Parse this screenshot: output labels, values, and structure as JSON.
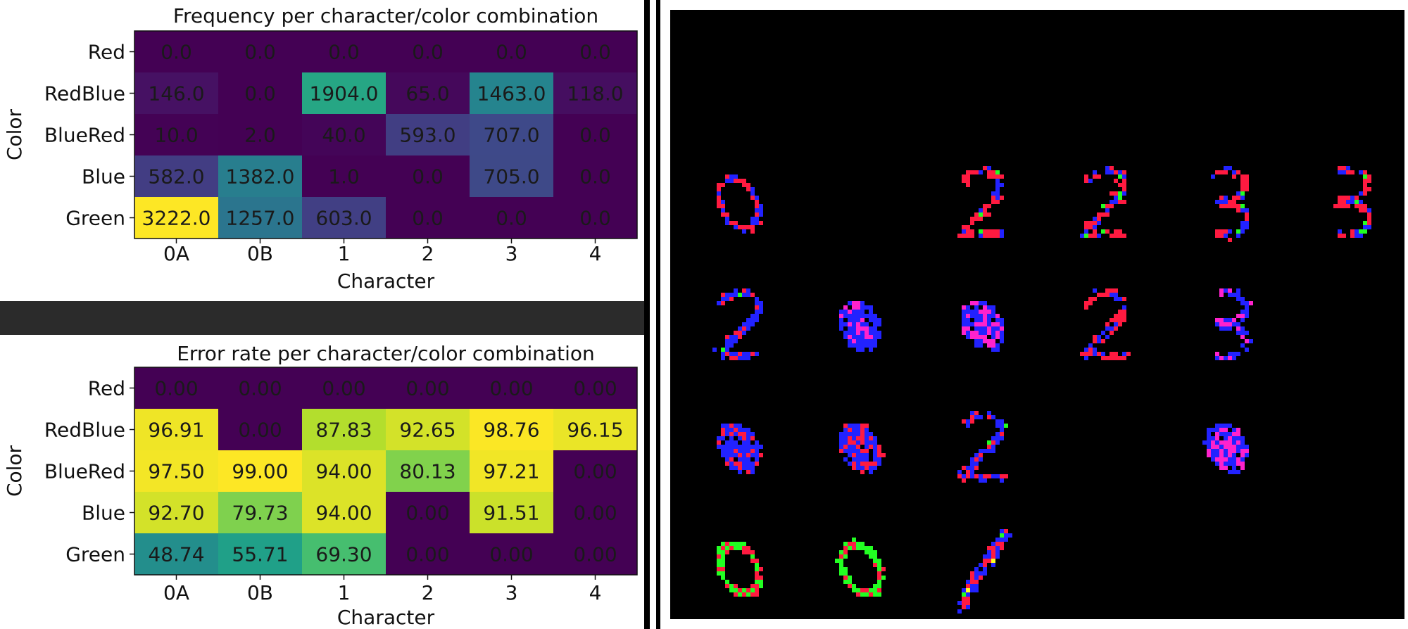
{
  "chart_data": [
    {
      "type": "heatmap",
      "title": "Frequency per character/color combination",
      "xlabel": "Character",
      "ylabel": "Color",
      "x_categories": [
        "0A",
        "0B",
        "1",
        "2",
        "3",
        "4"
      ],
      "y_categories": [
        "Red",
        "RedBlue",
        "BlueRed",
        "Blue",
        "Green"
      ],
      "values": [
        [
          0.0,
          0.0,
          0.0,
          0.0,
          0.0,
          0.0
        ],
        [
          146.0,
          0.0,
          1904.0,
          65.0,
          1463.0,
          118.0
        ],
        [
          10.0,
          2.0,
          40.0,
          593.0,
          707.0,
          0.0
        ],
        [
          582.0,
          1382.0,
          1.0,
          0.0,
          705.0,
          0.0
        ],
        [
          3222.0,
          1257.0,
          603.0,
          0.0,
          0.0,
          0.0
        ]
      ],
      "cell_labels": [
        [
          "0.0",
          "0.0",
          "0.0",
          "0.0",
          "0.0",
          "0.0"
        ],
        [
          "146.0",
          "0.0",
          "1904.0",
          "65.0",
          "1463.0",
          "118.0"
        ],
        [
          "10.0",
          "2.0",
          "40.0",
          "593.0",
          "707.0",
          "0.0"
        ],
        [
          "582.0",
          "1382.0",
          "1.0",
          "0.0",
          "705.0",
          "0.0"
        ],
        [
          "3222.0",
          "1257.0",
          "603.0",
          "0.0",
          "0.0",
          "0.0"
        ]
      ],
      "colormap": "viridis",
      "value_range": [
        0,
        3222.0
      ]
    },
    {
      "type": "heatmap",
      "title": "Error rate per character/color combination",
      "xlabel": "Character",
      "ylabel": "Color",
      "x_categories": [
        "0A",
        "0B",
        "1",
        "2",
        "3",
        "4"
      ],
      "y_categories": [
        "Red",
        "RedBlue",
        "BlueRed",
        "Blue",
        "Green"
      ],
      "values": [
        [
          0.0,
          0.0,
          0.0,
          0.0,
          0.0,
          0.0
        ],
        [
          96.91,
          0.0,
          87.83,
          92.65,
          98.76,
          96.15
        ],
        [
          97.5,
          99.0,
          94.0,
          80.13,
          97.21,
          0.0
        ],
        [
          92.7,
          79.73,
          94.0,
          0.0,
          91.51,
          0.0
        ],
        [
          48.74,
          55.71,
          69.3,
          0.0,
          0.0,
          0.0
        ]
      ],
      "cell_labels": [
        [
          "0.00",
          "0.00",
          "0.00",
          "0.00",
          "0.00",
          "0.00"
        ],
        [
          "96.91",
          "0.00",
          "87.83",
          "92.65",
          "98.76",
          "96.15"
        ],
        [
          "97.50",
          "99.00",
          "94.00",
          "80.13",
          "97.21",
          "0.00"
        ],
        [
          "92.70",
          "79.73",
          "94.00",
          "0.00",
          "91.51",
          "0.00"
        ],
        [
          "48.74",
          "55.71",
          "69.30",
          "0.00",
          "0.00",
          "0.00"
        ]
      ],
      "colormap": "viridis",
      "value_range": [
        0,
        99.0
      ]
    }
  ],
  "sample_grid": {
    "background": "#000000",
    "rows": 4,
    "cols": 6,
    "cells": [
      {
        "row": 0,
        "col": 0,
        "shape": "zero",
        "colors": [
          "#ff1a40",
          "#2222ff"
        ]
      },
      {
        "row": 0,
        "col": 2,
        "shape": "two",
        "colors": [
          "#ff1a40",
          "#2222ff",
          "#22ff22"
        ]
      },
      {
        "row": 0,
        "col": 3,
        "shape": "two",
        "colors": [
          "#ff1a40",
          "#2222ff",
          "#22ff22"
        ]
      },
      {
        "row": 0,
        "col": 4,
        "shape": "three",
        "colors": [
          "#ff1a40",
          "#2222ff",
          "#22ff22"
        ]
      },
      {
        "row": 0,
        "col": 5,
        "shape": "three",
        "colors": [
          "#ff1a40",
          "#2222ff",
          "#22ff22"
        ]
      },
      {
        "row": 1,
        "col": 0,
        "shape": "two",
        "colors": [
          "#2222ff",
          "#ff1a40",
          "#22ff22"
        ]
      },
      {
        "row": 1,
        "col": 1,
        "shape": "zero-filled",
        "colors": [
          "#2222ff",
          "#ff22cc"
        ]
      },
      {
        "row": 1,
        "col": 2,
        "shape": "zero-filled",
        "colors": [
          "#2222ff",
          "#ff22cc"
        ]
      },
      {
        "row": 1,
        "col": 3,
        "shape": "two",
        "colors": [
          "#ff1a40",
          "#2222ff"
        ]
      },
      {
        "row": 1,
        "col": 4,
        "shape": "three",
        "colors": [
          "#2222ff",
          "#ff22cc"
        ]
      },
      {
        "row": 2,
        "col": 0,
        "shape": "zero-filled",
        "colors": [
          "#2222ff",
          "#ff1a40"
        ]
      },
      {
        "row": 2,
        "col": 1,
        "shape": "zero-filled",
        "colors": [
          "#2222ff",
          "#ff1a40"
        ]
      },
      {
        "row": 2,
        "col": 2,
        "shape": "two",
        "colors": [
          "#2222ff",
          "#ff1a40",
          "#22ff22"
        ]
      },
      {
        "row": 2,
        "col": 4,
        "shape": "zero-filled",
        "colors": [
          "#2222ff",
          "#ff22cc"
        ]
      },
      {
        "row": 3,
        "col": 0,
        "shape": "zero-ring",
        "colors": [
          "#22ff22",
          "#ff1a40"
        ]
      },
      {
        "row": 3,
        "col": 1,
        "shape": "zero-ring",
        "colors": [
          "#22ff22",
          "#ff1a40"
        ]
      },
      {
        "row": 3,
        "col": 2,
        "shape": "one",
        "colors": [
          "#2222ff",
          "#ff1a40",
          "#22ff22",
          "#ffff22"
        ]
      }
    ]
  }
}
